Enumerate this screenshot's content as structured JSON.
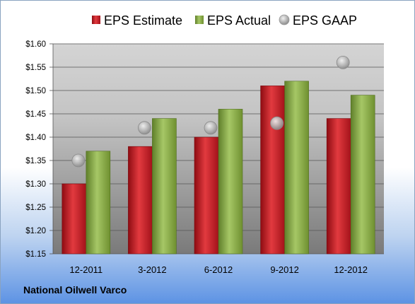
{
  "company_name": "National Oilwell Varco",
  "colors": {
    "estimate": "#c0161d",
    "actual": "#8aad45",
    "gaap": "#a9a9a9"
  },
  "chart_data": {
    "type": "bar",
    "categories": [
      "12-2011",
      "3-2012",
      "6-2012",
      "9-2012",
      "12-2012"
    ],
    "series": [
      {
        "name": "EPS Estimate",
        "type": "bar",
        "values": [
          1.3,
          1.38,
          1.4,
          1.51,
          1.44
        ]
      },
      {
        "name": "EPS Actual",
        "type": "bar",
        "values": [
          1.37,
          1.44,
          1.46,
          1.52,
          1.49
        ]
      },
      {
        "name": "EPS GAAP",
        "type": "scatter",
        "values": [
          1.35,
          1.42,
          1.42,
          1.43,
          1.56
        ]
      }
    ],
    "ylim": [
      1.15,
      1.6
    ],
    "yticks": [
      "$1.15",
      "$1.20",
      "$1.25",
      "$1.30",
      "$1.35",
      "$1.40",
      "$1.45",
      "$1.50",
      "$1.55",
      "$1.60"
    ],
    "ytick_values": [
      1.15,
      1.2,
      1.25,
      1.3,
      1.35,
      1.4,
      1.45,
      1.5,
      1.55,
      1.6
    ],
    "legend_position": "top",
    "grid": true
  }
}
